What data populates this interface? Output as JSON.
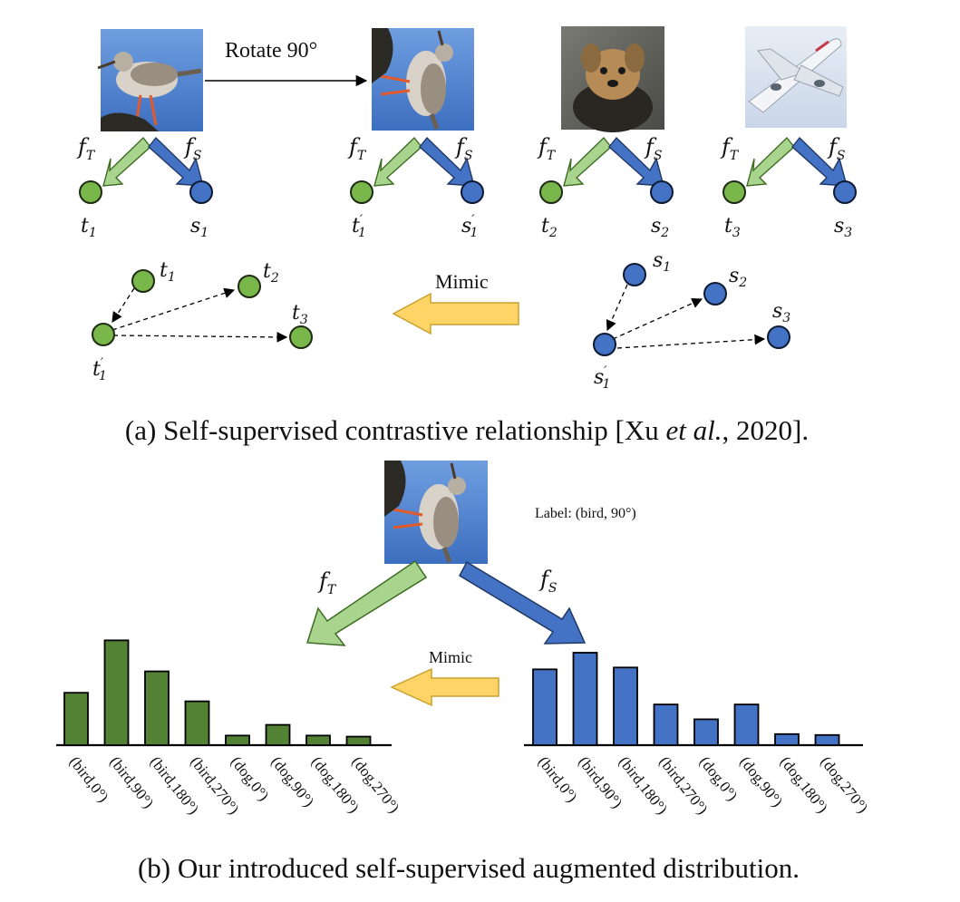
{
  "colors": {
    "teacher_green": "#79b74a",
    "teacher_green_stroke": "#3e6b24",
    "teacher_arrow": "#a8d48e",
    "student_blue": "#4472c4",
    "student_blue_stroke": "#1f3864",
    "mimic_arrow": "#ffd466",
    "mimic_arrow_stroke": "#c9a12e",
    "bar_green": "#548235",
    "bar_blue": "#4472c4"
  },
  "panel_a": {
    "rotate_label": "Rotate 90°",
    "mimic_label": "Mimic",
    "images": [
      "bird-photo",
      "rotated-bird-photo",
      "dog-photo",
      "airplane-photo"
    ],
    "fT": {
      "base": "f",
      "sub": "T"
    },
    "fS": {
      "base": "f",
      "sub": "S"
    },
    "outputs": [
      {
        "t": "t",
        "t_sub": "1",
        "t_prime": "",
        "s": "s",
        "s_sub": "1",
        "s_prime": ""
      },
      {
        "t": "t",
        "t_sub": "1",
        "t_prime": "′",
        "s": "s",
        "s_sub": "1",
        "s_prime": "′"
      },
      {
        "t": "t",
        "t_sub": "2",
        "t_prime": "",
        "s": "s",
        "s_sub": "2",
        "s_prime": ""
      },
      {
        "t": "t",
        "t_sub": "3",
        "t_prime": "",
        "s": "s",
        "s_sub": "3",
        "s_prime": ""
      }
    ],
    "caption_pre": "(a) Self-supervised contrastive relationship [Xu ",
    "caption_ital": "et al.",
    "caption_post": ", 2020]."
  },
  "panel_b": {
    "label_text": "Label: (bird, 90°)",
    "mimic_label": "Mimic",
    "fT": {
      "base": "f",
      "sub": "T"
    },
    "fS": {
      "base": "f",
      "sub": "S"
    },
    "caption": "(b) Our introduced self-supervised augmented distribution."
  },
  "chart_data": [
    {
      "type": "bar",
      "categories": [
        "(bird,0°)",
        "(bird,90°)",
        "(bird,180°)",
        "(bird,270°)",
        "(dog,0°)",
        "(dog,90°)",
        "(dog,180°)",
        "(dog,270°)"
      ],
      "values": [
        0.49,
        0.98,
        0.69,
        0.41,
        0.09,
        0.19,
        0.09,
        0.08
      ],
      "ylim": [
        0,
        1
      ]
    },
    {
      "type": "bar",
      "categories": [
        "(bird,0°)",
        "(bird,90°)",
        "(bird,180°)",
        "(bird,270°)",
        "(dog,0°)",
        "(dog,90°)",
        "(dog,180°)",
        "(dog,270°)"
      ],
      "values": [
        0.82,
        1.0,
        0.84,
        0.44,
        0.28,
        0.44,
        0.12,
        0.11
      ],
      "ylim": [
        0,
        1
      ]
    }
  ]
}
